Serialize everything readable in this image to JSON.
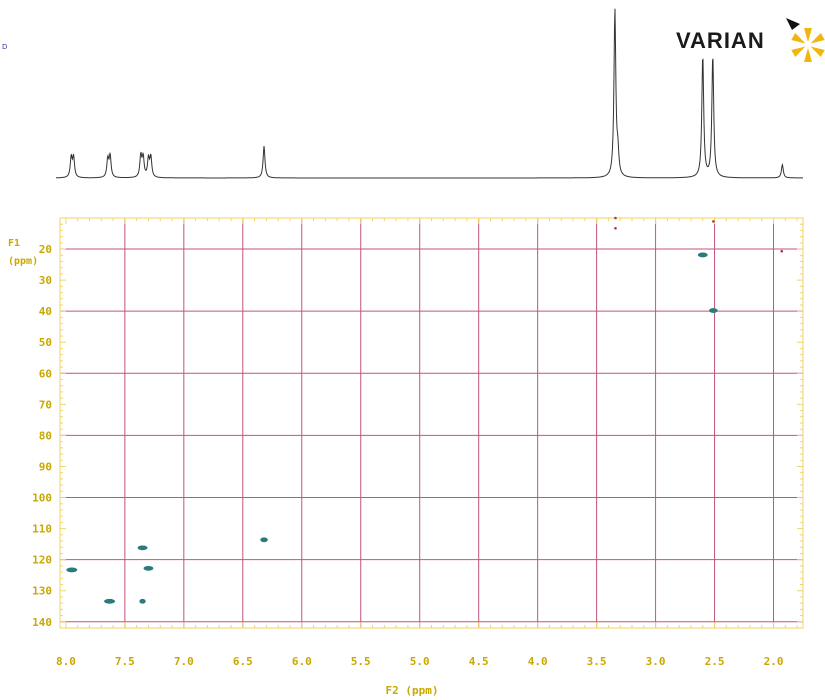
{
  "brand": {
    "name": "VARIAN",
    "corner_mark": "D"
  },
  "colors": {
    "frame": "#f2d36a",
    "grid": "#c2547d",
    "tick_text": "#c9a800",
    "projection": "#333333",
    "cross_peak": "#2a7a7e",
    "artifact": "#b03050"
  },
  "chart_data": {
    "type": "scatter",
    "subtype": "2D NMR contour (HSQC) with 1D projection",
    "xlabel": "F2 (ppm)",
    "ylabel": "F1\n(ppm)",
    "xlim": [
      8.05,
      1.75
    ],
    "ylim": [
      10,
      142
    ],
    "x_ticks": [
      8.0,
      7.5,
      7.0,
      6.5,
      6.0,
      5.5,
      5.0,
      4.5,
      4.0,
      3.5,
      3.0,
      2.5,
      2.0
    ],
    "x_tick_labels": [
      "8.0",
      "7.5",
      "7.0",
      "6.5",
      "6.0",
      "5.5",
      "5.0",
      "4.5",
      "4.0",
      "3.5",
      "3.0",
      "2.5",
      "2.0"
    ],
    "y_ticks": [
      20,
      30,
      40,
      50,
      60,
      70,
      80,
      90,
      100,
      110,
      120,
      130,
      140
    ],
    "y_tick_labels": [
      "20",
      "30",
      "40",
      "50",
      "60",
      "70",
      "80",
      "90",
      "100",
      "110",
      "120",
      "130",
      "140"
    ],
    "grid_x": [
      7.5,
      7.0,
      6.5,
      6.0,
      5.5,
      5.0,
      4.5,
      4.0,
      3.5,
      3.0,
      2.5,
      2.0
    ],
    "grid_y": [
      20,
      40,
      60,
      80,
      100,
      120,
      140
    ],
    "grid": true,
    "cross_peaks": [
      {
        "x": 7.95,
        "y": 123.3,
        "w": 0.06
      },
      {
        "x": 7.63,
        "y": 133.4,
        "w": 0.06
      },
      {
        "x": 7.35,
        "y": 116.2,
        "w": 0.05
      },
      {
        "x": 7.3,
        "y": 122.8,
        "w": 0.05
      },
      {
        "x": 7.35,
        "y": 133.4,
        "w": 0.02
      },
      {
        "x": 6.32,
        "y": 113.6,
        "w": 0.03
      },
      {
        "x": 2.6,
        "y": 21.9,
        "w": 0.05
      },
      {
        "x": 2.51,
        "y": 39.8,
        "w": 0.04
      }
    ],
    "artifacts": [
      {
        "x": 3.34,
        "y": 10.0
      },
      {
        "x": 3.34,
        "y": 13.3
      },
      {
        "x": 2.51,
        "y": 11.1
      },
      {
        "x": 1.93,
        "y": 20.7
      }
    ],
    "projection_peaks": [
      {
        "x": 7.955,
        "h": 0.12
      },
      {
        "x": 7.935,
        "h": 0.12
      },
      {
        "x": 7.645,
        "h": 0.11
      },
      {
        "x": 7.625,
        "h": 0.13
      },
      {
        "x": 7.365,
        "h": 0.13
      },
      {
        "x": 7.345,
        "h": 0.12
      },
      {
        "x": 7.3,
        "h": 0.11
      },
      {
        "x": 7.28,
        "h": 0.12
      },
      {
        "x": 6.32,
        "h": 0.19
      },
      {
        "x": 3.345,
        "h": 1.0
      },
      {
        "x": 3.32,
        "h": 0.13
      },
      {
        "x": 2.6,
        "h": 0.73
      },
      {
        "x": 2.515,
        "h": 0.73
      },
      {
        "x": 1.925,
        "h": 0.08
      }
    ]
  }
}
